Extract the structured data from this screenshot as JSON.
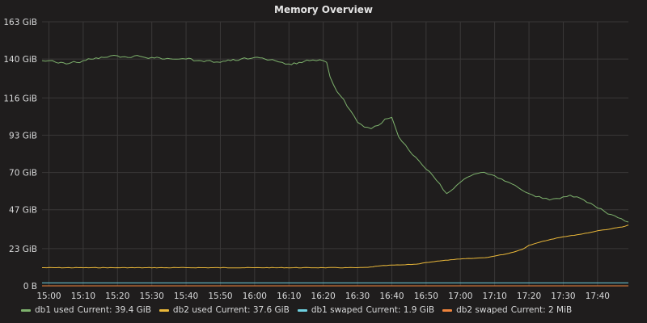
{
  "chart_data": {
    "type": "line",
    "title": "Memory Overview",
    "xlabel": "",
    "ylabel": "",
    "x_ticks": [
      "15:00",
      "15:10",
      "15:20",
      "15:30",
      "15:40",
      "15:50",
      "16:00",
      "16:10",
      "16:20",
      "16:30",
      "16:40",
      "16:50",
      "17:00",
      "17:10",
      "17:20",
      "17:30",
      "17:40"
    ],
    "y_ticks": [
      {
        "value": 0,
        "label": "0 B"
      },
      {
        "value": 23,
        "label": "23 GiB"
      },
      {
        "value": 47,
        "label": "47 GiB"
      },
      {
        "value": 70,
        "label": "70 GiB"
      },
      {
        "value": 93,
        "label": "93 GiB"
      },
      {
        "value": 116,
        "label": "116 GiB"
      },
      {
        "value": 140,
        "label": "140 GiB"
      },
      {
        "value": 163,
        "label": "163 GiB"
      }
    ],
    "xlim": [
      "14:58",
      "17:49"
    ],
    "ylim": [
      0,
      163
    ],
    "y_unit": "GiB",
    "grid": true,
    "legend_position": "bottom",
    "series": [
      {
        "name": "db1 used",
        "color": "#7eb26d",
        "current_label": "Current: 39.4 GiB",
        "x": [
          "14:58",
          "15:00",
          "15:02",
          "15:05",
          "15:08",
          "15:10",
          "15:13",
          "15:16",
          "15:18",
          "15:20",
          "15:23",
          "15:25",
          "15:28",
          "15:30",
          "15:33",
          "15:36",
          "15:38",
          "15:40",
          "15:43",
          "15:46",
          "15:48",
          "15:50",
          "15:53",
          "15:56",
          "15:58",
          "16:00",
          "16:03",
          "16:06",
          "16:08",
          "16:10",
          "16:13",
          "16:16",
          "16:18",
          "16:20",
          "16:21",
          "16:22",
          "16:24",
          "16:26",
          "16:28",
          "16:30",
          "16:32",
          "16:34",
          "16:36",
          "16:38",
          "16:40",
          "16:41",
          "16:42",
          "16:44",
          "16:46",
          "16:48",
          "16:50",
          "16:52",
          "16:54",
          "16:56",
          "16:58",
          "17:00",
          "17:02",
          "17:04",
          "17:06",
          "17:08",
          "17:10",
          "17:12",
          "17:14",
          "17:16",
          "17:18",
          "17:20",
          "17:22",
          "17:24",
          "17:26",
          "17:28",
          "17:30",
          "17:32",
          "17:34",
          "17:36",
          "17:38",
          "17:40",
          "17:42",
          "17:44",
          "17:46",
          "17:48",
          "17:49"
        ],
        "values": [
          139,
          139,
          138,
          137,
          138,
          139,
          140,
          141,
          142,
          142,
          141,
          142,
          141,
          141,
          140,
          140,
          140,
          140,
          139,
          139,
          138,
          138,
          139,
          140,
          140,
          141,
          140,
          139,
          138,
          137,
          138,
          139,
          139,
          139,
          138,
          129,
          120,
          115,
          108,
          101,
          98,
          97,
          99,
          103,
          104,
          98,
          92,
          87,
          81,
          77,
          72,
          68,
          63,
          57,
          60,
          64,
          67,
          69,
          70,
          69,
          68,
          66,
          64,
          62,
          59,
          57,
          55,
          54,
          53,
          54,
          55,
          56,
          55,
          53,
          51,
          48,
          46,
          44,
          42,
          40,
          39.4
        ]
      },
      {
        "name": "db2 used",
        "color": "#eab839",
        "current_label": "Current: 37.6 GiB",
        "x": [
          "14:58",
          "15:20",
          "15:40",
          "16:00",
          "16:20",
          "16:30",
          "16:33",
          "16:36",
          "16:40",
          "16:44",
          "16:48",
          "16:50",
          "16:54",
          "16:58",
          "17:00",
          "17:04",
          "17:08",
          "17:10",
          "17:14",
          "17:18",
          "17:20",
          "17:24",
          "17:28",
          "17:30",
          "17:34",
          "17:38",
          "17:40",
          "17:44",
          "17:48",
          "17:49"
        ],
        "values": [
          11.2,
          11.2,
          11.2,
          11.2,
          11.2,
          11.2,
          11.4,
          12.2,
          12.8,
          13.0,
          13.6,
          14.4,
          15.4,
          16.2,
          16.6,
          17.0,
          17.6,
          18.4,
          20.0,
          22.5,
          25.0,
          27.5,
          29.5,
          30.3,
          31.5,
          33.0,
          34.0,
          35.2,
          36.8,
          37.6
        ]
      },
      {
        "name": "db1 swaped",
        "color": "#6ed0e0",
        "current_label": "Current: 1.9 GiB",
        "x": [
          "14:58",
          "17:49"
        ],
        "values": [
          1.9,
          1.9
        ]
      },
      {
        "name": "db2 swaped",
        "color": "#ef843c",
        "current_label": "Current: 2 MiB",
        "x": [
          "14:58",
          "17:49"
        ],
        "values": [
          0.002,
          0.002
        ]
      }
    ]
  }
}
